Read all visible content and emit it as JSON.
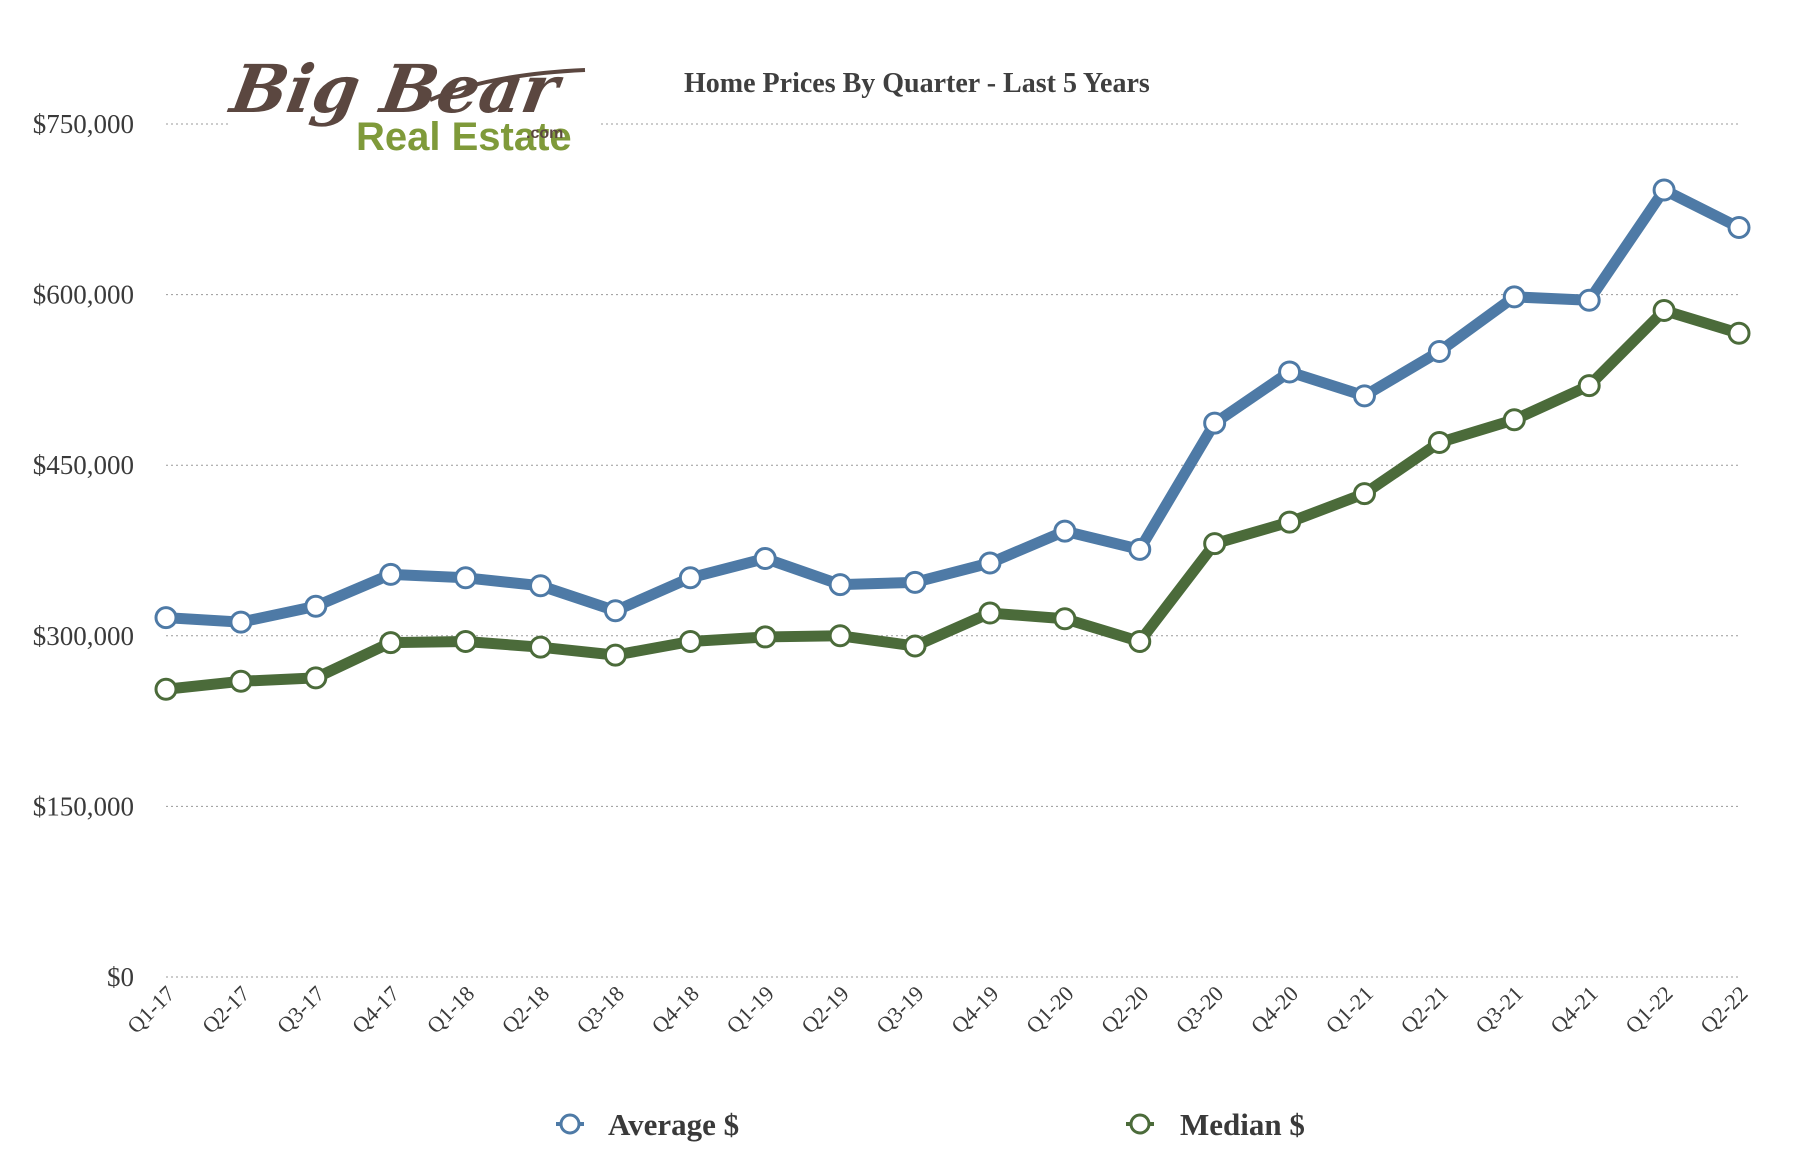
{
  "logo": {
    "line1": "Big Bear",
    "line2": "Real Estate",
    "suffix": ".com"
  },
  "chart_data": {
    "type": "line",
    "title": "Home Prices By Quarter - Last 5 Years",
    "xlabel": "",
    "ylabel": "",
    "ylim": [
      0,
      750000
    ],
    "yticks": [
      0,
      150000,
      300000,
      450000,
      600000,
      750000
    ],
    "ytick_labels": [
      "$0",
      "$150,000",
      "$300,000",
      "$450,000",
      "$600,000",
      "$750,000"
    ],
    "grid": true,
    "legend_position": "bottom",
    "categories": [
      "Q1-17",
      "Q2-17",
      "Q3-17",
      "Q4-17",
      "Q1-18",
      "Q2-18",
      "Q3-18",
      "Q4-18",
      "Q1-19",
      "Q2-19",
      "Q3-19",
      "Q4-19",
      "Q1-20",
      "Q2-20",
      "Q3-20",
      "Q4-20",
      "Q1-21",
      "Q2-21",
      "Q3-21",
      "Q4-21",
      "Q1-22",
      "Q2-22"
    ],
    "series": [
      {
        "name": "Average $",
        "color": "#4e7aa6",
        "values": [
          316000,
          312000,
          326000,
          354000,
          351000,
          344000,
          322000,
          351000,
          368000,
          345000,
          347000,
          364000,
          392000,
          376000,
          487000,
          532000,
          511000,
          550000,
          598000,
          595000,
          692000,
          659000
        ]
      },
      {
        "name": "Median $",
        "color": "#4b6b3a",
        "values": [
          253000,
          260000,
          263000,
          294000,
          295000,
          290000,
          283000,
          295000,
          299000,
          300000,
          291000,
          320000,
          315000,
          295000,
          381000,
          400000,
          425000,
          470000,
          490000,
          520000,
          586000,
          566000
        ]
      }
    ]
  }
}
